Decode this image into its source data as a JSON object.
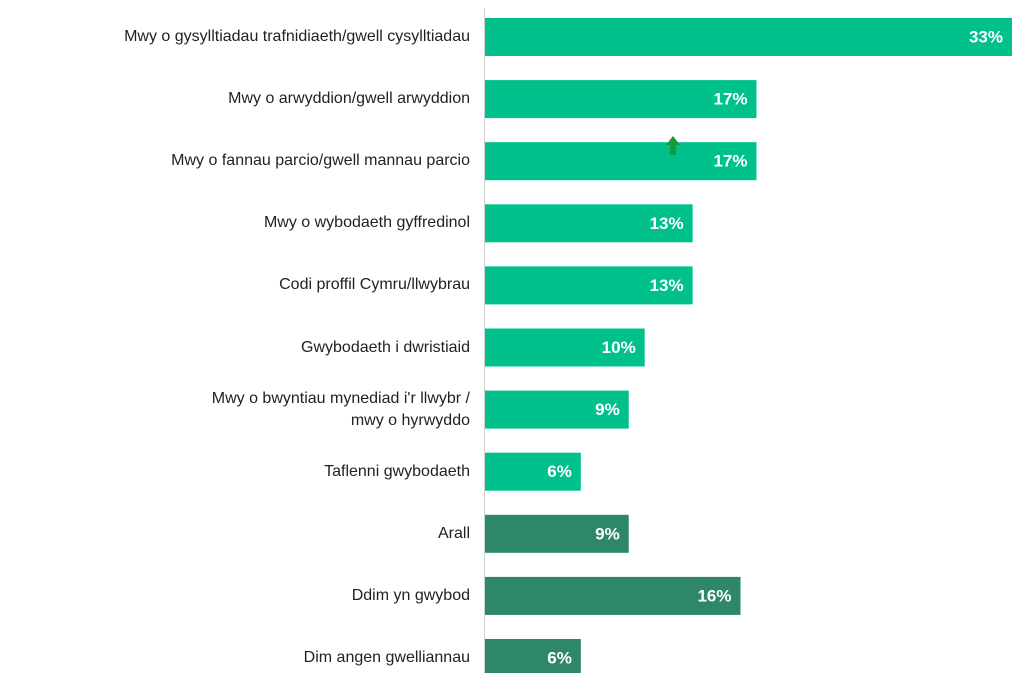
{
  "chart_data": {
    "type": "barh",
    "categories": [
      "Mwy o gysylltiadau trafnidiaeth/gwell cysylltiadau",
      "Mwy o arwyddion/gwell arwyddion",
      "Mwy o fannau parcio/gwell mannau parcio",
      "Mwy o wybodaeth gyffredinol",
      "Codi proffil Cymru/llwybrau",
      "Gwybodaeth i dwristiaid",
      "Mwy o bwyntiau mynediad i'r llwybr /\nmwy o hyrwyddo",
      "Taflenni gwybodaeth",
      "Arall",
      "Ddim yn gwybod",
      "Dim angen gwelliannau"
    ],
    "values": [
      33,
      17,
      17,
      13,
      13,
      10,
      9,
      6,
      9,
      16,
      6
    ],
    "value_labels": [
      "33%",
      "17%",
      "17%",
      "13%",
      "13%",
      "10%",
      "9%",
      "6%",
      "9%",
      "16%",
      "6%"
    ],
    "colors": [
      "#00c08b",
      "#00c08b",
      "#00c08b",
      "#00c08b",
      "#00c08b",
      "#00c08b",
      "#00c08b",
      "#00c08b",
      "#2e8769",
      "#2e8769",
      "#2e8769"
    ],
    "xlim": [
      0,
      33
    ]
  }
}
